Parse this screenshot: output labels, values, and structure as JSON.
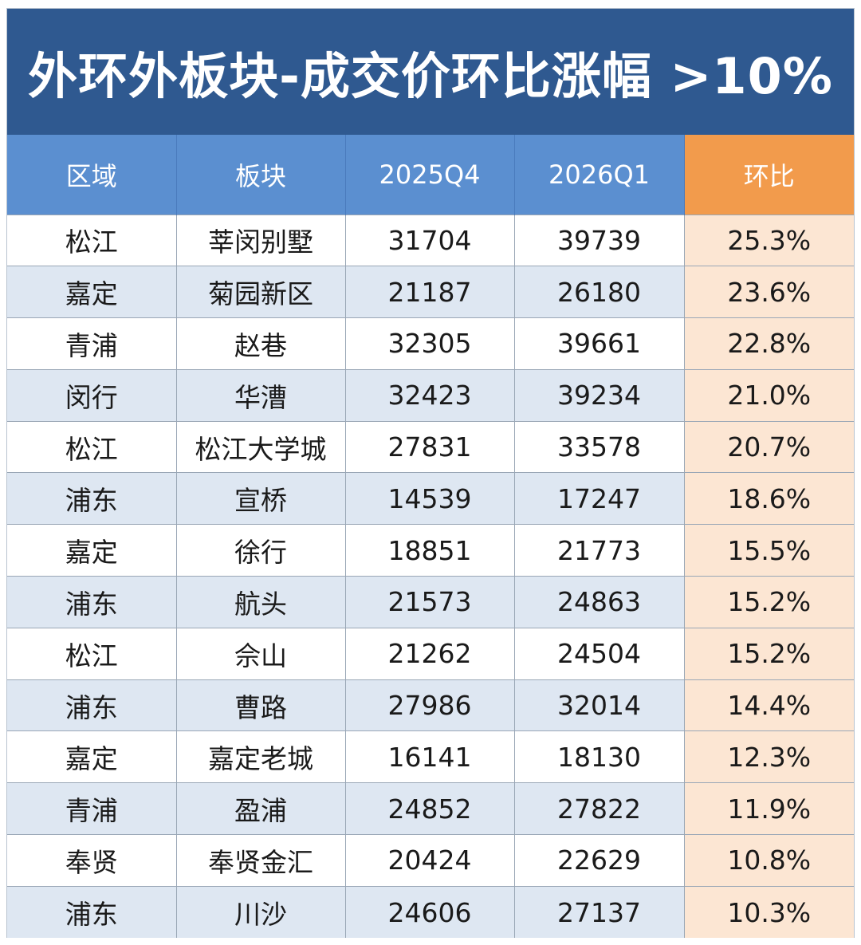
{
  "title": "外环外板块-成交价环比涨幅 >10%",
  "colors": {
    "title_bg": "#2f5990",
    "header_bg": "#5b8fd0",
    "ratio_header_bg": "#f29b4c",
    "ratio_cell_bg": "#fce6d3",
    "stripe_bg": "#dee7f2"
  },
  "chart_data": {
    "type": "table",
    "title": "外环外板块-成交价环比涨幅 >10%",
    "columns": [
      "区域",
      "板块",
      "2025Q4",
      "2026Q1",
      "环比"
    ],
    "rows": [
      [
        "松江",
        "莘闵别墅",
        "31704",
        "39739",
        "25.3%"
      ],
      [
        "嘉定",
        "菊园新区",
        "21187",
        "26180",
        "23.6%"
      ],
      [
        "青浦",
        "赵巷",
        "32305",
        "39661",
        "22.8%"
      ],
      [
        "闵行",
        "华漕",
        "32423",
        "39234",
        "21.0%"
      ],
      [
        "松江",
        "松江大学城",
        "27831",
        "33578",
        "20.7%"
      ],
      [
        "浦东",
        "宣桥",
        "14539",
        "17247",
        "18.6%"
      ],
      [
        "嘉定",
        "徐行",
        "18851",
        "21773",
        "15.5%"
      ],
      [
        "浦东",
        "航头",
        "21573",
        "24863",
        "15.2%"
      ],
      [
        "松江",
        "佘山",
        "21262",
        "24504",
        "15.2%"
      ],
      [
        "浦东",
        "曹路",
        "27986",
        "32014",
        "14.4%"
      ],
      [
        "嘉定",
        "嘉定老城",
        "16141",
        "18130",
        "12.3%"
      ],
      [
        "青浦",
        "盈浦",
        "24852",
        "27822",
        "11.9%"
      ],
      [
        "奉贤",
        "奉贤金汇",
        "20424",
        "22629",
        "10.8%"
      ],
      [
        "浦东",
        "川沙",
        "24606",
        "27137",
        "10.3%"
      ]
    ]
  }
}
